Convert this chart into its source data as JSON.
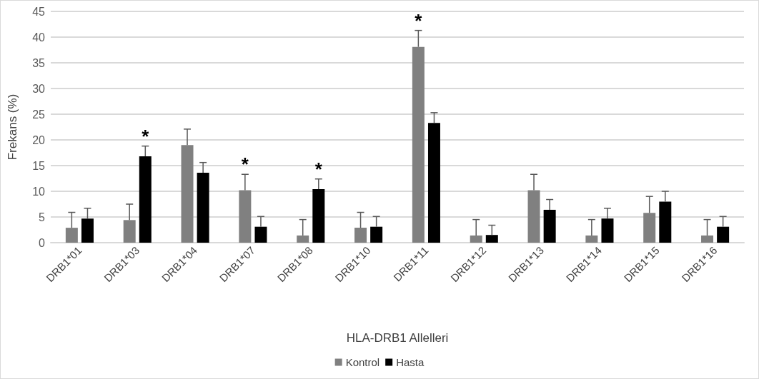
{
  "chart_data": {
    "type": "bar",
    "xlabel": "HLA-DRB1 Allelleri",
    "ylabel": "Frekans (%)",
    "categories": [
      "DRB1*01",
      "DRB1*03",
      "DRB1*04",
      "DRB1*07",
      "DRB1*08",
      "DRB1*10",
      "DRB1*11",
      "DRB1*12",
      "DRB1*13",
      "DRB1*14",
      "DRB1*15",
      "DRB1*16"
    ],
    "series": [
      {
        "name": "Kontrol",
        "color": "#808080",
        "values": [
          2.9,
          4.4,
          19.0,
          10.2,
          1.4,
          2.9,
          38.1,
          1.4,
          10.2,
          1.4,
          5.8,
          1.4
        ],
        "errors": [
          [
            2.9,
            5.9
          ],
          [
            4.4,
            7.5
          ],
          [
            19.0,
            22.1
          ],
          [
            10.2,
            13.3
          ],
          [
            1.4,
            4.5
          ],
          [
            2.9,
            5.9
          ],
          [
            38.1,
            41.3
          ],
          [
            1.4,
            4.5
          ],
          [
            10.2,
            13.3
          ],
          [
            1.4,
            4.5
          ],
          [
            5.8,
            9.0
          ],
          [
            1.4,
            4.5
          ]
        ]
      },
      {
        "name": "Hasta",
        "color": "#000000",
        "values": [
          4.7,
          16.8,
          13.6,
          3.1,
          10.4,
          3.1,
          23.3,
          1.5,
          6.4,
          4.7,
          8.0,
          3.1
        ],
        "errors": [
          [
            4.7,
            6.7
          ],
          [
            16.8,
            18.8
          ],
          [
            13.6,
            15.6
          ],
          [
            3.1,
            5.1
          ],
          [
            10.4,
            12.4
          ],
          [
            3.1,
            5.1
          ],
          [
            23.3,
            25.3
          ],
          [
            1.5,
            3.4
          ],
          [
            6.4,
            8.4
          ],
          [
            4.7,
            6.7
          ],
          [
            8.0,
            10.0
          ],
          [
            3.1,
            5.1
          ]
        ]
      }
    ],
    "ylim": [
      0,
      45
    ],
    "yticks": [
      0,
      5,
      10,
      15,
      20,
      25,
      30,
      35,
      40,
      45
    ],
    "grid": "y",
    "legend": "bottom",
    "annotations": [
      {
        "text": "*",
        "x": "DRB1*03",
        "y": 16.8
      },
      {
        "text": "*",
        "x": "DRB1*07",
        "y": 10.2
      },
      {
        "text": "*",
        "x": "DRB1*08",
        "y": 10.4
      },
      {
        "text": "*",
        "x": "DRB1*11",
        "y": 38.1
      }
    ]
  }
}
